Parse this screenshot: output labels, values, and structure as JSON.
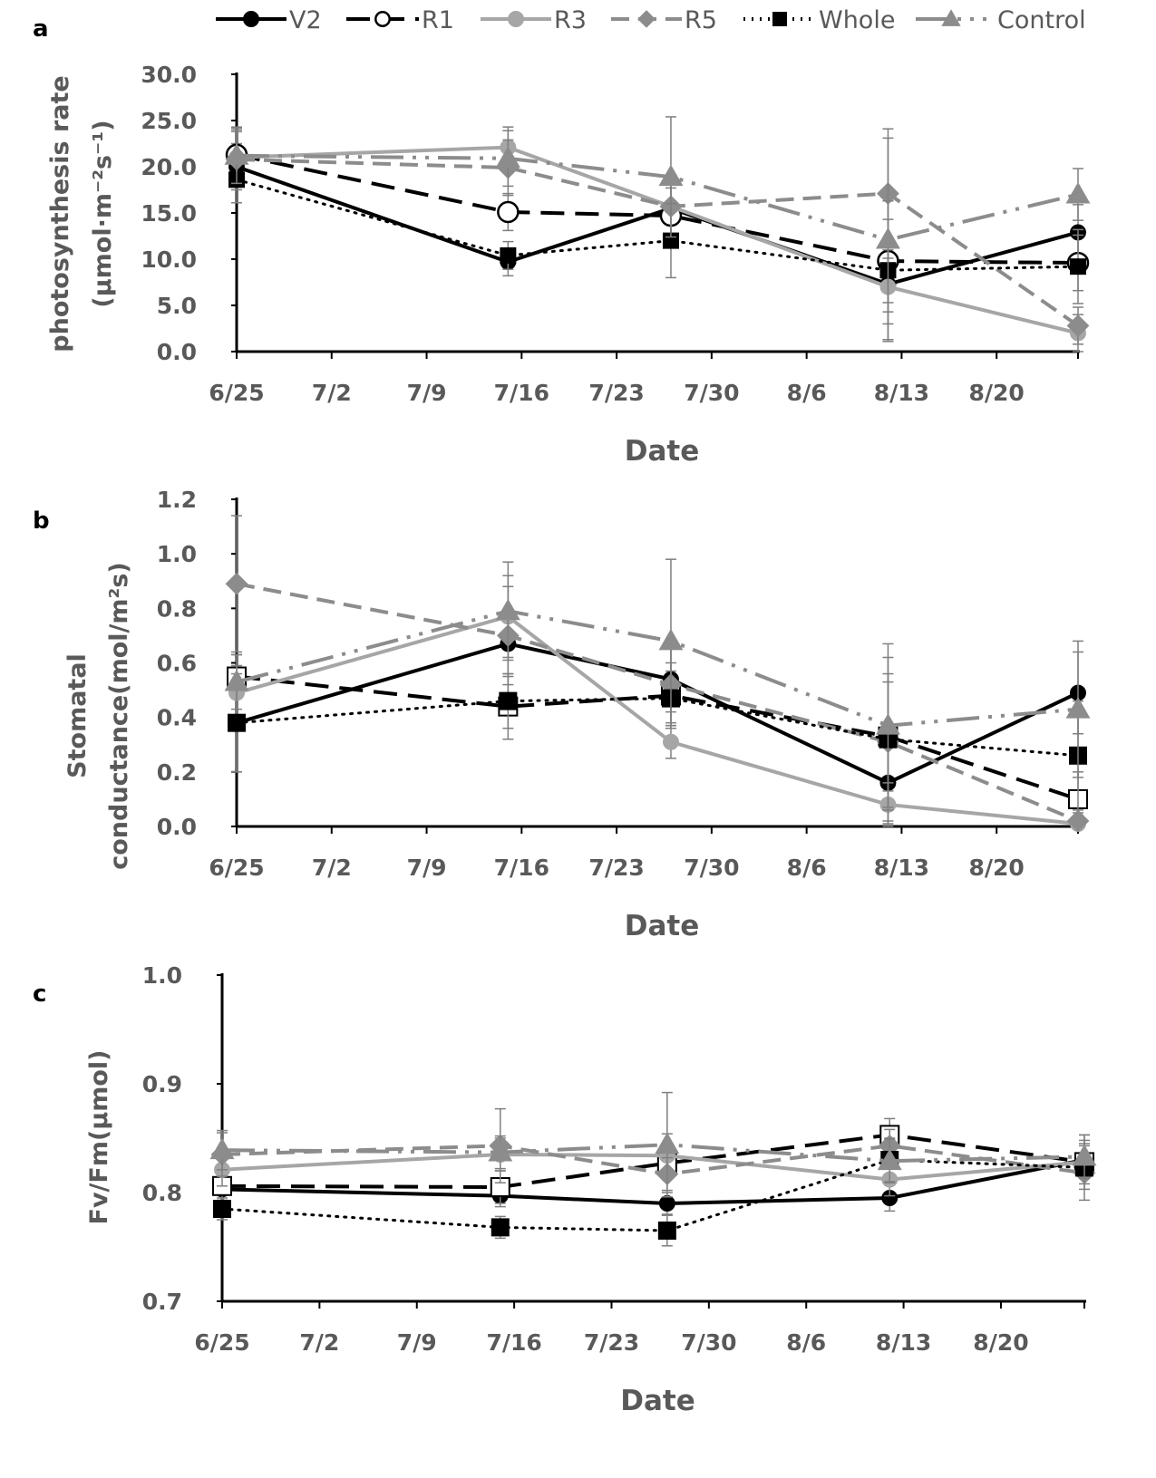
{
  "legend": [
    {
      "key": "V2",
      "label": "V2"
    },
    {
      "key": "R1",
      "label": "R1"
    },
    {
      "key": "R3",
      "label": "R3"
    },
    {
      "key": "R5",
      "label": "R5"
    },
    {
      "key": "Whole",
      "label": "Whole"
    },
    {
      "key": "Control",
      "label": "Control"
    }
  ],
  "series_styles": {
    "V2": {
      "color": "#000000",
      "dash": "",
      "marker": "circle",
      "marker_fill": "#000000"
    },
    "R1": {
      "color": "#000000",
      "dash": "26 12",
      "marker": "circle",
      "marker_fill": "#ffffff"
    },
    "R3": {
      "color": "#a6a6a6",
      "dash": "",
      "marker": "circle",
      "marker_fill": "#a6a6a6"
    },
    "R5": {
      "color": "#8c8c8c",
      "dash": "20 10",
      "marker": "diamond",
      "marker_fill": "#8c8c8c"
    },
    "Whole": {
      "color": "#000000",
      "dash": "2 7",
      "marker": "square",
      "marker_fill": "#000000"
    },
    "Control": {
      "color": "#8c8c8c",
      "dash": "36 10 4 10 4 10",
      "marker": "triangle",
      "marker_fill": "#8c8c8c"
    }
  },
  "chart_data": [
    {
      "panel": "a",
      "type": "line",
      "xlabel": "Date",
      "ylabel_lines": [
        "photosynthesis rate",
        "(µmol·m⁻²s⁻¹)"
      ],
      "x_ticks": [
        "6/25",
        "7/2",
        "7/9",
        "7/16",
        "7/23",
        "7/30",
        "8/6",
        "8/13",
        "8/20"
      ],
      "y_ticks": [
        "0.0",
        "5.0",
        "10.0",
        "15.0",
        "20.0",
        "25.0",
        "30.0"
      ],
      "ylim": [
        0,
        30
      ],
      "x": [
        "6/25",
        "7/15",
        "7/27",
        "8/12",
        "8/26"
      ],
      "series": [
        {
          "key": "V2",
          "values": [
            20.0,
            9.7,
            15.5,
            7.3,
            12.9
          ],
          "errors": [
            2.5,
            1.5,
            3.0,
            3.0,
            3.0
          ]
        },
        {
          "key": "R1",
          "values": [
            21.3,
            15.1,
            14.7,
            9.8,
            9.6
          ],
          "errors": [
            3.0,
            2.0,
            3.0,
            4.5,
            3.0
          ]
        },
        {
          "key": "R3",
          "values": [
            21.0,
            22.1,
            15.7,
            7.0,
            2.0
          ],
          "errors": [
            3.0,
            2.2,
            3.0,
            4.0,
            2.0
          ]
        },
        {
          "key": "R5",
          "values": [
            20.8,
            19.9,
            15.7,
            17.1,
            2.8
          ],
          "errors": [
            3.0,
            3.0,
            3.0,
            7.0,
            2.0
          ]
        },
        {
          "key": "Whole",
          "values": [
            18.6,
            10.4,
            12.0,
            8.8,
            9.2
          ],
          "errors": [
            2.5,
            1.5,
            4.0,
            7.5,
            4.0
          ]
        },
        {
          "key": "Control",
          "values": [
            21.2,
            20.9,
            18.9,
            12.1,
            17.0
          ],
          "errors": [
            3.0,
            3.0,
            6.5,
            11.0,
            2.8
          ]
        }
      ]
    },
    {
      "panel": "b",
      "type": "line",
      "xlabel": "Date",
      "ylabel_lines": [
        "Stomatal",
        "conductance(mol/m²s)"
      ],
      "x_ticks": [
        "6/25",
        "7/2",
        "7/9",
        "7/16",
        "7/23",
        "7/30",
        "8/6",
        "8/13",
        "8/20"
      ],
      "y_ticks": [
        "0.0",
        "0.2",
        "0.4",
        "0.6",
        "0.8",
        "1.0",
        "1.2"
      ],
      "ylim": [
        0,
        1.2
      ],
      "x": [
        "6/25",
        "7/15",
        "7/27",
        "8/12",
        "8/26"
      ],
      "series": [
        {
          "key": "V2",
          "values": [
            0.38,
            0.67,
            0.54,
            0.16,
            0.49
          ],
          "errors": [
            0.18,
            0.12,
            0.12,
            0.15,
            0.15
          ]
        },
        {
          "key": "R1",
          "values": [
            0.55,
            0.44,
            0.48,
            0.33,
            0.1
          ],
          "errors": [
            0.08,
            0.12,
            0.12,
            0.2,
            0.1
          ]
        },
        {
          "key": "R3",
          "values": [
            0.49,
            0.77,
            0.31,
            0.08,
            0.01
          ],
          "errors": [
            0.1,
            0.15,
            0.06,
            0.08,
            0.03
          ]
        },
        {
          "key": "R5",
          "values": [
            0.89,
            0.7,
            0.52,
            0.31,
            0.02
          ],
          "errors": [
            0.25,
            0.18,
            0.15,
            0.25,
            0.03
          ]
        },
        {
          "key": "Whole",
          "values": [
            0.38,
            0.46,
            0.47,
            0.32,
            0.26
          ],
          "errors": [
            0.18,
            0.1,
            0.1,
            0.3,
            0.2
          ]
        },
        {
          "key": "Control",
          "values": [
            0.53,
            0.79,
            0.68,
            0.37,
            0.43
          ],
          "errors": [
            0.1,
            0.18,
            0.3,
            0.3,
            0.25
          ]
        }
      ]
    },
    {
      "panel": "c",
      "type": "line",
      "xlabel": "Date",
      "ylabel_lines": [
        "Fv/Fm(µmol)"
      ],
      "x_ticks": [
        "6/25",
        "7/2",
        "7/9",
        "7/16",
        "7/23",
        "7/30",
        "8/6",
        "8/13",
        "8/20"
      ],
      "y_ticks": [
        "0.7",
        "0.8",
        "0.9",
        "1.0"
      ],
      "ylim": [
        0.7,
        1.0
      ],
      "x": [
        "6/25",
        "7/15",
        "7/27",
        "8/12",
        "8/26"
      ],
      "series": [
        {
          "key": "V2",
          "values": [
            0.803,
            0.797,
            0.79,
            0.795,
            0.83
          ],
          "errors": [
            0.01,
            0.01,
            0.01,
            0.012,
            0.015
          ]
        },
        {
          "key": "R1",
          "values": [
            0.806,
            0.805,
            0.827,
            0.853,
            0.828
          ],
          "errors": [
            0.02,
            0.015,
            0.015,
            0.015,
            0.02
          ]
        },
        {
          "key": "R3",
          "values": [
            0.821,
            0.835,
            0.834,
            0.812,
            0.828
          ],
          "errors": [
            0.015,
            0.015,
            0.02,
            0.015,
            0.015
          ]
        },
        {
          "key": "R5",
          "values": [
            0.835,
            0.843,
            0.817,
            0.843,
            0.818
          ],
          "errors": [
            0.02,
            0.034,
            0.015,
            0.015,
            0.015
          ]
        },
        {
          "key": "Whole",
          "values": [
            0.785,
            0.768,
            0.765,
            0.83,
            0.823
          ],
          "errors": [
            0.01,
            0.01,
            0.014,
            0.02,
            0.03
          ]
        },
        {
          "key": "Control",
          "values": [
            0.839,
            0.837,
            0.844,
            0.829,
            0.833
          ],
          "errors": [
            0.018,
            0.015,
            0.048,
            0.02,
            0.02
          ]
        }
      ]
    }
  ]
}
